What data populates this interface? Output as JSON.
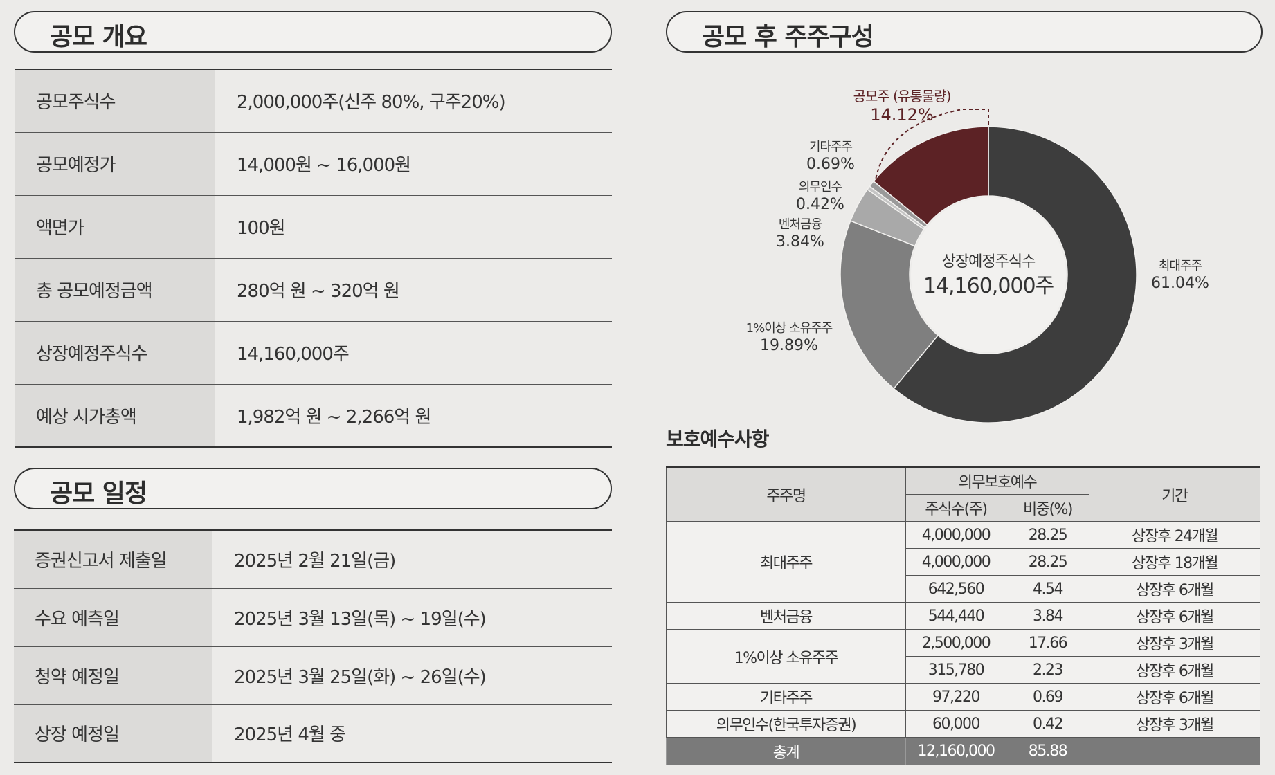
{
  "overview": {
    "title": "공모 개요",
    "rows": [
      {
        "label": "공모주식수",
        "value": "2,000,000주(신주 80%, 구주20%)"
      },
      {
        "label": "공모예정가",
        "value": "14,000원 ~ 16,000원"
      },
      {
        "label": "액면가",
        "value": "100원"
      },
      {
        "label": "총 공모예정금액",
        "value": "280억 원 ~ 320억 원"
      },
      {
        "label": "상장예정주식수",
        "value": "14,160,000주"
      },
      {
        "label": "예상 시가총액",
        "value": "1,982억 원 ~ 2,266억 원"
      }
    ]
  },
  "schedule": {
    "title": "공모 일정",
    "rows": [
      {
        "label": "증권신고서 제출일",
        "value": "2025년 2월 21일(금)"
      },
      {
        "label": "수요 예측일",
        "value": "2025년 3월 13일(목) ~ 19일(수)"
      },
      {
        "label": "청약 예정일",
        "value": "2025년 3월 25일(화) ~ 26일(수)"
      },
      {
        "label": "상장 예정일",
        "value": "2025년 4월 중"
      }
    ]
  },
  "composition": {
    "title": "공모 후 주주구성"
  },
  "chart_data": {
    "type": "pie",
    "center_label": "상장예정주식수",
    "center_value": "14,160,000주",
    "slices": [
      {
        "name": "최대주주",
        "value": 61.04,
        "label": "61.04%",
        "color": "#3d3d3d"
      },
      {
        "name": "1%이상 소유주주",
        "value": 19.89,
        "label": "19.89%",
        "color": "#7f7f7f"
      },
      {
        "name": "벤처금융",
        "value": 3.84,
        "label": "3.84%",
        "color": "#a9a9a9"
      },
      {
        "name": "의무인수",
        "value": 0.42,
        "label": "0.42%",
        "color": "#c4c4c4"
      },
      {
        "name": "기타주주",
        "value": 0.69,
        "label": "0.69%",
        "color": "#9a9a9a"
      },
      {
        "name": "공모주 (유통물량)",
        "value": 14.12,
        "label": "14.12%",
        "color": "#5c2225"
      }
    ]
  },
  "lockup": {
    "title": "보호예수사항",
    "headers": {
      "holder": "주주명",
      "group": "의무보호예수",
      "shares": "주식수(주)",
      "ratio": "비중(%)",
      "period": "기간"
    },
    "groups": [
      {
        "holder": "최대주주",
        "rows": [
          {
            "shares": "4,000,000",
            "ratio": "28.25",
            "period": "상장후 24개월"
          },
          {
            "shares": "4,000,000",
            "ratio": "28.25",
            "period": "상장후 18개월"
          },
          {
            "shares": "642,560",
            "ratio": "4.54",
            "period": "상장후 6개월"
          }
        ]
      },
      {
        "holder": "벤처금융",
        "rows": [
          {
            "shares": "544,440",
            "ratio": "3.84",
            "period": "상장후 6개월"
          }
        ]
      },
      {
        "holder": "1%이상 소유주주",
        "rows": [
          {
            "shares": "2,500,000",
            "ratio": "17.66",
            "period": "상장후 3개월"
          },
          {
            "shares": "315,780",
            "ratio": "2.23",
            "period": "상장후 6개월"
          }
        ]
      },
      {
        "holder": "기타주주",
        "rows": [
          {
            "shares": "97,220",
            "ratio": "0.69",
            "period": "상장후 6개월"
          }
        ]
      },
      {
        "holder": "의무인수(한국투자증권)",
        "rows": [
          {
            "shares": "60,000",
            "ratio": "0.42",
            "period": "상장후 3개월"
          }
        ]
      }
    ],
    "total": {
      "holder": "총계",
      "shares": "12,160,000",
      "ratio": "85.88",
      "period": ""
    }
  }
}
